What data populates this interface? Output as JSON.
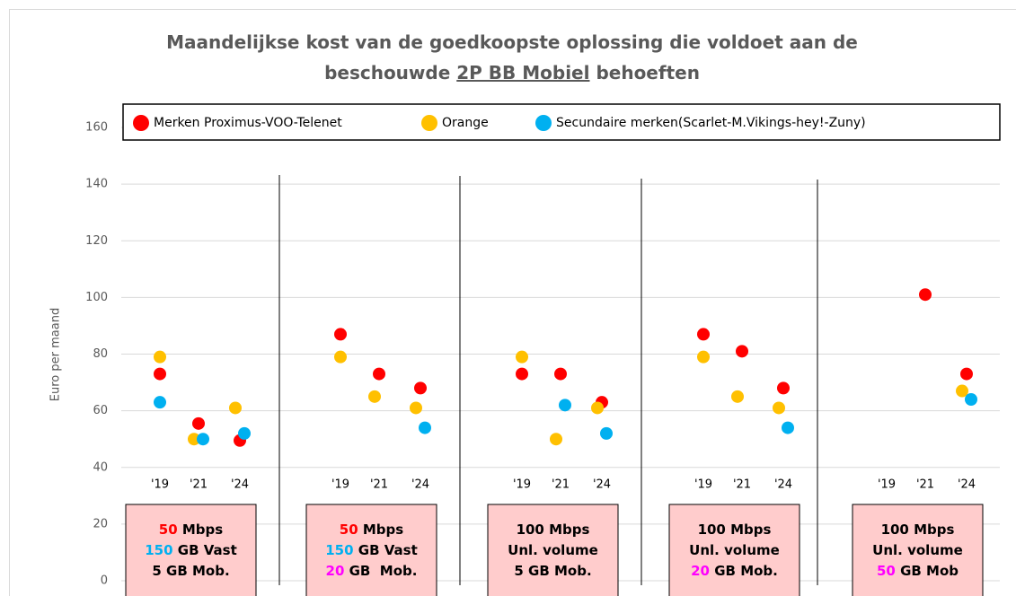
{
  "chart_data": {
    "type": "scatter",
    "title": {
      "lines": [
        [
          {
            "text": "Maandelijkse kost van de goedkoopste oplossing die voldoet aan de"
          }
        ],
        [
          {
            "text": "beschouwde "
          },
          {
            "text": "2P BB Mobiel",
            "underline": true
          },
          {
            "text": " behoeften"
          }
        ]
      ]
    },
    "y_label": "Euro per maand",
    "ylim": [
      0,
      160
    ],
    "yticks": [
      0,
      20,
      40,
      60,
      80,
      100,
      120,
      140,
      160
    ],
    "grid": true,
    "categories": [
      "'19",
      "'21",
      "'24",
      "'19",
      "'21",
      "'24",
      "'19",
      "'21",
      "'24",
      "'19",
      "'21",
      "'24",
      "'19",
      "'21",
      "'24"
    ],
    "series": [
      {
        "name": "Merken Proximus-VOO-Telenet",
        "color": "#ff0000",
        "values": [
          73,
          55.5,
          49.5,
          87,
          73,
          68,
          73,
          73,
          63,
          87,
          81,
          68,
          null,
          101,
          73
        ]
      },
      {
        "name": "Orange",
        "color": "#ffc000",
        "values": [
          79,
          50,
          61,
          79,
          65,
          61,
          79,
          50,
          61,
          79,
          65,
          61,
          null,
          null,
          67
        ]
      },
      {
        "name": "Secundaire merken(Scarlet-M.Vikings-hey!-Zuny)",
        "color": "#00b0f0",
        "values": [
          63,
          50,
          52,
          null,
          null,
          54,
          null,
          62,
          52,
          null,
          null,
          54,
          null,
          null,
          64
        ]
      }
    ],
    "groups": [
      {
        "lines": [
          [
            {
              "text": "50",
              "color": "#ff0000"
            },
            {
              "text": " Mbps"
            }
          ],
          [
            {
              "text": "150",
              "color": "#00b0f0"
            },
            {
              "text": " GB Vast"
            }
          ],
          [
            {
              "text": "5 GB Mob."
            }
          ]
        ]
      },
      {
        "lines": [
          [
            {
              "text": "50",
              "color": "#ff0000"
            },
            {
              "text": " Mbps"
            }
          ],
          [
            {
              "text": "150",
              "color": "#00b0f0"
            },
            {
              "text": " GB Vast"
            }
          ],
          [
            {
              "text": "20",
              "color": "#ff00ff"
            },
            {
              "text": " GB  Mob."
            }
          ]
        ]
      },
      {
        "lines": [
          [
            {
              "text": "100 Mbps"
            }
          ],
          [
            {
              "text": "Unl. volume"
            }
          ],
          [
            {
              "text": "5 GB Mob."
            }
          ]
        ]
      },
      {
        "lines": [
          [
            {
              "text": "100 Mbps"
            }
          ],
          [
            {
              "text": "Unl. volume"
            }
          ],
          [
            {
              "text": "20",
              "color": "#ff00ff"
            },
            {
              "text": " GB Mob."
            }
          ]
        ]
      },
      {
        "lines": [
          [
            {
              "text": "100 Mbps"
            }
          ],
          [
            {
              "text": "Unl. volume"
            }
          ],
          [
            {
              "text": "50",
              "color": "#ff00ff"
            },
            {
              "text": " GB Mob"
            }
          ]
        ]
      }
    ]
  }
}
